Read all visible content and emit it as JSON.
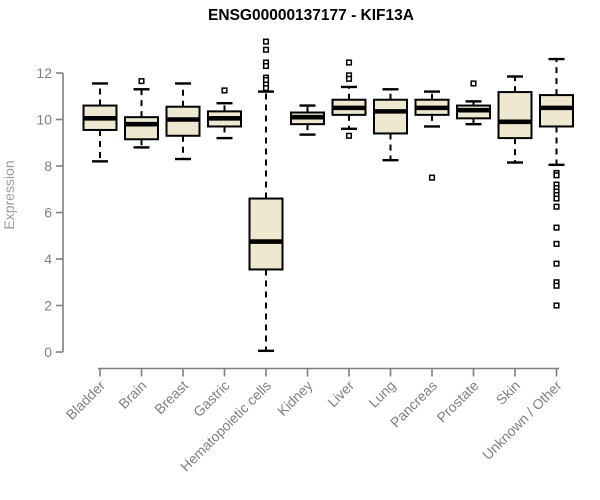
{
  "chart_data": {
    "type": "boxplot",
    "title": "ENSG00000137177 - KIF13A",
    "xlabel": "",
    "ylabel": "Expression",
    "ylim": [
      0,
      13.5
    ],
    "yticks": [
      0,
      2,
      4,
      6,
      8,
      10,
      12
    ],
    "grid": false,
    "legend": "none",
    "categories": [
      "Bladder",
      "Brain",
      "Breast",
      "Gastric",
      "Hematopoietic cells",
      "Kidney",
      "Liver",
      "Lung",
      "Pancreas",
      "Prostate",
      "Skin",
      "Unknown / Other"
    ],
    "boxes": [
      {
        "category": "Bladder",
        "low": 8.2,
        "q1": 9.55,
        "median": 10.05,
        "q3": 10.6,
        "high": 11.55,
        "outliers": []
      },
      {
        "category": "Brain",
        "low": 8.8,
        "q1": 9.15,
        "median": 9.8,
        "q3": 10.1,
        "high": 11.3,
        "outliers": [
          11.65
        ]
      },
      {
        "category": "Breast",
        "low": 8.3,
        "q1": 9.3,
        "median": 10.0,
        "q3": 10.55,
        "high": 11.55,
        "outliers": []
      },
      {
        "category": "Gastric",
        "low": 9.2,
        "q1": 9.7,
        "median": 10.05,
        "q3": 10.35,
        "high": 10.7,
        "outliers": [
          11.25
        ]
      },
      {
        "category": "Hematopoietic cells",
        "low": 0.05,
        "q1": 3.55,
        "median": 4.75,
        "q3": 6.6,
        "high": 11.2,
        "outliers": [
          13.35,
          13.0,
          12.45,
          12.3,
          11.8,
          11.7,
          11.5,
          11.35
        ]
      },
      {
        "category": "Kidney",
        "low": 9.35,
        "q1": 9.8,
        "median": 10.1,
        "q3": 10.3,
        "high": 10.6,
        "outliers": []
      },
      {
        "category": "Liver",
        "low": 9.6,
        "q1": 10.2,
        "median": 10.5,
        "q3": 10.85,
        "high": 11.4,
        "outliers": [
          12.45,
          11.9,
          11.75,
          9.3
        ]
      },
      {
        "category": "Lung",
        "low": 8.25,
        "q1": 9.4,
        "median": 10.35,
        "q3": 10.85,
        "high": 11.3,
        "outliers": []
      },
      {
        "category": "Pancreas",
        "low": 9.7,
        "q1": 10.2,
        "median": 10.5,
        "q3": 10.85,
        "high": 11.2,
        "outliers": [
          7.5
        ]
      },
      {
        "category": "Prostate",
        "low": 9.8,
        "q1": 10.05,
        "median": 10.4,
        "q3": 10.6,
        "high": 10.78,
        "outliers": [
          11.55
        ]
      },
      {
        "category": "Skin",
        "low": 8.15,
        "q1": 9.2,
        "median": 9.9,
        "q3": 11.18,
        "high": 11.85,
        "outliers": []
      },
      {
        "category": "Unknown / Other",
        "low": 8.05,
        "q1": 9.7,
        "median": 10.5,
        "q3": 11.05,
        "high": 12.6,
        "outliers": [
          7.7,
          7.6,
          7.2,
          7.05,
          6.9,
          6.75,
          6.6,
          6.25,
          5.35,
          4.65,
          3.8,
          3.0,
          2.85,
          2.0
        ]
      }
    ]
  },
  "colors": {
    "box_fill": "#EDE8CF",
    "box_border": "#000000",
    "median": "#000000",
    "whisker": "#000000",
    "outlier": "#000000",
    "axis": "#7F7F7F",
    "tick_label": "#7F7F7F",
    "axis_label": "#9B9B9B",
    "title": "#000000",
    "background": "#FFFFFF"
  }
}
